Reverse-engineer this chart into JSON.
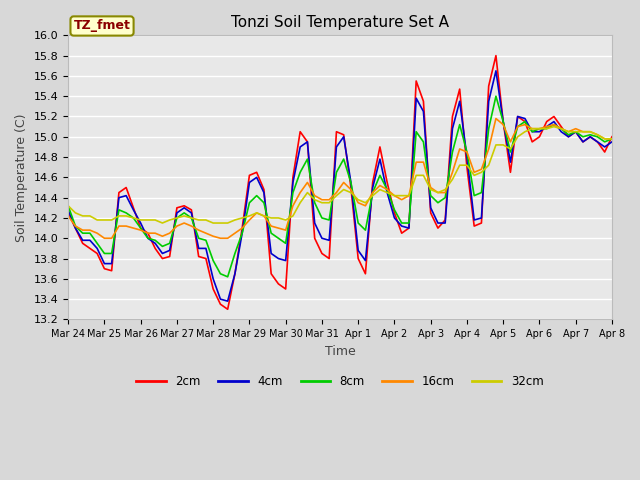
{
  "title": "Tonzi Soil Temperature Set A",
  "xlabel": "Time",
  "ylabel": "Soil Temperature (C)",
  "ylim": [
    13.2,
    16.0
  ],
  "fig_bg_color": "#d8d8d8",
  "plot_bg_color": "#e8e8e8",
  "legend_label": "TZ_fmet",
  "x_tick_labels": [
    "Mar 24",
    "Mar 25",
    "Mar 26",
    "Mar 27",
    "Mar 28",
    "Mar 29",
    "Mar 30",
    "Mar 31",
    "Apr 1",
    "Apr 2",
    "Apr 3",
    "Apr 4",
    "Apr 5",
    "Apr 6",
    "Apr 7",
    "Apr 8"
  ],
  "series_colors": [
    "#ff0000",
    "#0000cc",
    "#00cc00",
    "#ff8800",
    "#cccc00"
  ],
  "series_labels": [
    "2cm",
    "4cm",
    "8cm",
    "16cm",
    "32cm"
  ],
  "series_2cm": [
    14.25,
    14.1,
    13.95,
    13.9,
    13.85,
    13.7,
    13.68,
    14.45,
    14.5,
    14.3,
    14.1,
    14.05,
    13.9,
    13.8,
    13.82,
    14.3,
    14.32,
    14.28,
    13.82,
    13.8,
    13.5,
    13.35,
    13.3,
    13.65,
    14.1,
    14.62,
    14.65,
    14.48,
    13.65,
    13.55,
    13.5,
    14.6,
    15.05,
    14.95,
    14.0,
    13.85,
    13.8,
    15.05,
    15.02,
    14.5,
    13.8,
    13.65,
    14.55,
    14.9,
    14.55,
    14.25,
    14.05,
    14.1,
    15.55,
    15.35,
    14.25,
    14.1,
    14.18,
    15.2,
    15.47,
    14.7,
    14.12,
    14.15,
    15.5,
    15.8,
    15.15,
    14.65,
    15.2,
    15.15,
    14.95,
    15.0,
    15.15,
    15.2,
    15.1,
    15.0,
    15.05,
    14.95,
    15.0,
    14.95,
    14.85,
    15.0
  ],
  "series_4cm": [
    14.28,
    14.1,
    13.98,
    13.98,
    13.9,
    13.75,
    13.75,
    14.4,
    14.42,
    14.28,
    14.15,
    14.0,
    13.95,
    13.85,
    13.88,
    14.25,
    14.3,
    14.25,
    13.9,
    13.9,
    13.6,
    13.4,
    13.38,
    13.65,
    14.05,
    14.55,
    14.6,
    14.45,
    13.85,
    13.8,
    13.78,
    14.55,
    14.9,
    14.95,
    14.15,
    14.0,
    13.98,
    14.9,
    15.0,
    14.55,
    13.88,
    13.78,
    14.5,
    14.78,
    14.45,
    14.2,
    14.12,
    14.1,
    15.38,
    15.25,
    14.3,
    14.15,
    14.15,
    15.08,
    15.35,
    14.8,
    14.18,
    14.2,
    15.35,
    15.65,
    15.15,
    14.75,
    15.2,
    15.18,
    15.05,
    15.05,
    15.1,
    15.15,
    15.05,
    15.0,
    15.05,
    14.95,
    15.0,
    14.95,
    14.9,
    14.95
  ],
  "series_8cm": [
    14.32,
    14.12,
    14.05,
    14.05,
    13.95,
    13.85,
    13.85,
    14.28,
    14.25,
    14.2,
    14.1,
    14.0,
    13.98,
    13.92,
    13.95,
    14.2,
    14.25,
    14.2,
    14.0,
    13.98,
    13.78,
    13.65,
    13.62,
    13.85,
    14.05,
    14.35,
    14.42,
    14.35,
    14.05,
    14.0,
    13.95,
    14.45,
    14.65,
    14.78,
    14.35,
    14.2,
    14.18,
    14.65,
    14.78,
    14.55,
    14.15,
    14.08,
    14.45,
    14.62,
    14.48,
    14.28,
    14.15,
    14.15,
    15.05,
    14.95,
    14.42,
    14.35,
    14.4,
    14.85,
    15.12,
    14.85,
    14.42,
    14.45,
    15.08,
    15.4,
    15.15,
    14.85,
    15.1,
    15.15,
    15.05,
    15.08,
    15.08,
    15.12,
    15.08,
    15.02,
    15.05,
    15.0,
    15.02,
    15.0,
    14.95,
    14.98
  ],
  "series_16cm": [
    14.22,
    14.12,
    14.08,
    14.08,
    14.05,
    14.0,
    14.0,
    14.12,
    14.12,
    14.1,
    14.08,
    14.05,
    14.05,
    14.02,
    14.05,
    14.12,
    14.15,
    14.12,
    14.08,
    14.05,
    14.02,
    14.0,
    14.0,
    14.05,
    14.1,
    14.18,
    14.25,
    14.22,
    14.12,
    14.1,
    14.08,
    14.32,
    14.45,
    14.55,
    14.42,
    14.38,
    14.38,
    14.45,
    14.55,
    14.48,
    14.35,
    14.32,
    14.45,
    14.52,
    14.48,
    14.42,
    14.38,
    14.42,
    14.75,
    14.75,
    14.5,
    14.45,
    14.45,
    14.65,
    14.88,
    14.85,
    14.65,
    14.68,
    14.88,
    15.18,
    15.12,
    14.95,
    15.1,
    15.12,
    15.08,
    15.08,
    15.1,
    15.12,
    15.08,
    15.05,
    15.08,
    15.05,
    15.05,
    15.02,
    14.98,
    14.98
  ],
  "series_32cm": [
    14.32,
    14.25,
    14.22,
    14.22,
    14.18,
    14.18,
    14.18,
    14.22,
    14.22,
    14.2,
    14.18,
    14.18,
    14.18,
    14.15,
    14.18,
    14.2,
    14.22,
    14.2,
    14.18,
    14.18,
    14.15,
    14.15,
    14.15,
    14.18,
    14.2,
    14.22,
    14.25,
    14.22,
    14.2,
    14.2,
    14.18,
    14.22,
    14.35,
    14.45,
    14.38,
    14.35,
    14.35,
    14.42,
    14.48,
    14.45,
    14.38,
    14.35,
    14.42,
    14.48,
    14.45,
    14.42,
    14.42,
    14.42,
    14.62,
    14.62,
    14.48,
    14.45,
    14.48,
    14.58,
    14.72,
    14.72,
    14.62,
    14.65,
    14.72,
    14.92,
    14.92,
    14.88,
    15.0,
    15.05,
    15.08,
    15.08,
    15.08,
    15.1,
    15.08,
    15.05,
    15.05,
    15.05,
    15.05,
    15.02,
    14.98,
    14.98
  ]
}
